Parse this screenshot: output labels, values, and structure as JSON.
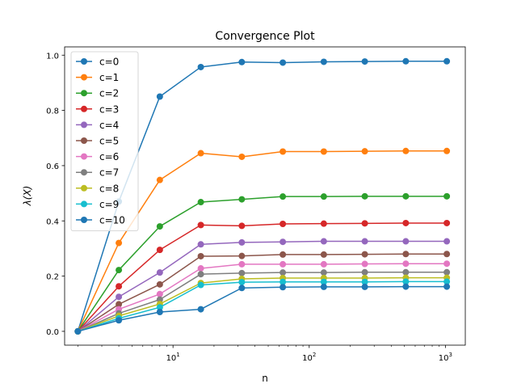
{
  "chart_data": {
    "type": "line",
    "title": "Convergence Plot",
    "xlabel": "n",
    "ylabel": "λ(X)",
    "xscale": "log",
    "xlim": [
      1.6,
      1400
    ],
    "ylim": [
      -0.05,
      1.03
    ],
    "x": [
      2,
      4,
      8,
      16,
      32,
      64,
      128,
      256,
      512,
      1024
    ],
    "x_ticks": [
      {
        "value": 10,
        "base": "10",
        "exp": "1"
      },
      {
        "value": 100,
        "base": "10",
        "exp": "2"
      },
      {
        "value": 1000,
        "base": "10",
        "exp": "3"
      }
    ],
    "y_ticks": [
      {
        "value": 0.0,
        "label": "0.0"
      },
      {
        "value": 0.2,
        "label": "0.2"
      },
      {
        "value": 0.4,
        "label": "0.4"
      },
      {
        "value": 0.6,
        "label": "0.6"
      },
      {
        "value": 0.8,
        "label": "0.8"
      },
      {
        "value": 1.0,
        "label": "1.0"
      }
    ],
    "legend_position": "top-left",
    "series": [
      {
        "name": "c=0",
        "color": "#1f77b4",
        "values": [
          0.0,
          0.47,
          0.85,
          0.957,
          0.975,
          0.973,
          0.976,
          0.977,
          0.978,
          0.978
        ]
      },
      {
        "name": "c=1",
        "color": "#ff7f0e",
        "values": [
          0.0,
          0.32,
          0.548,
          0.645,
          0.632,
          0.651,
          0.651,
          0.652,
          0.653,
          0.653
        ]
      },
      {
        "name": "c=2",
        "color": "#2ca02c",
        "values": [
          0.0,
          0.222,
          0.38,
          0.468,
          0.478,
          0.488,
          0.488,
          0.489,
          0.489,
          0.489
        ]
      },
      {
        "name": "c=3",
        "color": "#d62728",
        "values": [
          0.0,
          0.163,
          0.295,
          0.385,
          0.382,
          0.389,
          0.39,
          0.391,
          0.392,
          0.392
        ]
      },
      {
        "name": "c=4",
        "color": "#9467bd",
        "values": [
          0.0,
          0.125,
          0.213,
          0.315,
          0.322,
          0.324,
          0.326,
          0.326,
          0.326,
          0.326
        ]
      },
      {
        "name": "c=5",
        "color": "#8c564b",
        "values": [
          0.0,
          0.098,
          0.17,
          0.272,
          0.273,
          0.278,
          0.278,
          0.279,
          0.28,
          0.28
        ]
      },
      {
        "name": "c=6",
        "color": "#e377c2",
        "values": [
          0.0,
          0.08,
          0.135,
          0.228,
          0.243,
          0.243,
          0.243,
          0.244,
          0.245,
          0.245
        ]
      },
      {
        "name": "c=7",
        "color": "#7f7f7f",
        "values": [
          0.0,
          0.065,
          0.115,
          0.207,
          0.211,
          0.213,
          0.213,
          0.214,
          0.214,
          0.214
        ]
      },
      {
        "name": "c=8",
        "color": "#bcbd22",
        "values": [
          0.0,
          0.056,
          0.099,
          0.175,
          0.19,
          0.193,
          0.193,
          0.193,
          0.194,
          0.194
        ]
      },
      {
        "name": "c=9",
        "color": "#17becf",
        "values": [
          0.0,
          0.047,
          0.087,
          0.168,
          0.178,
          0.179,
          0.179,
          0.179,
          0.18,
          0.18
        ]
      },
      {
        "name": "c=10",
        "color": "#1f77b4",
        "values": [
          0.0,
          0.04,
          0.07,
          0.08,
          0.157,
          0.16,
          0.161,
          0.161,
          0.162,
          0.162
        ]
      }
    ]
  }
}
